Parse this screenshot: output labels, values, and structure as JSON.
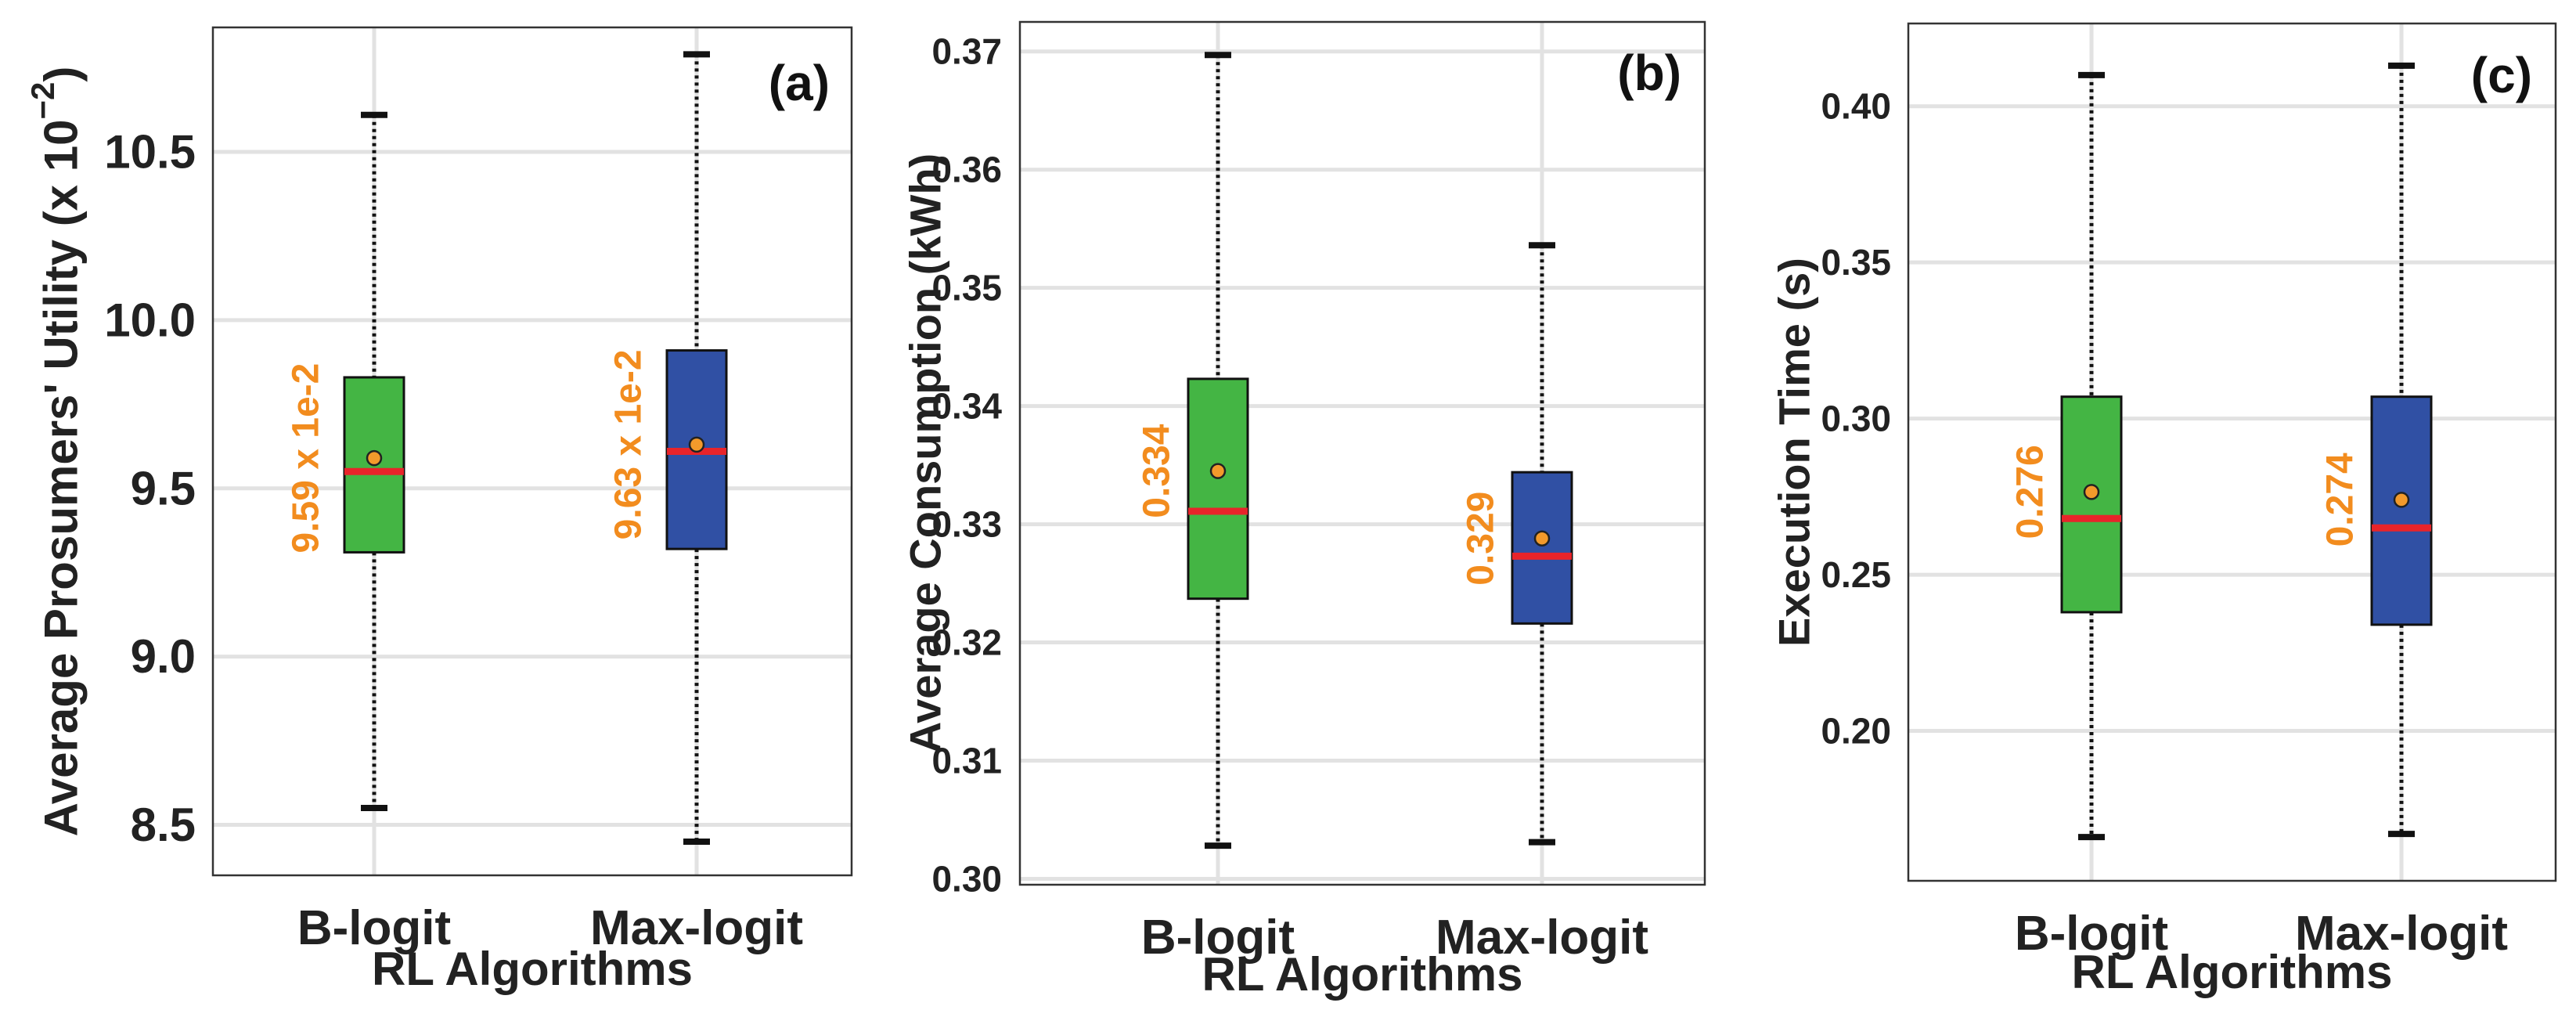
{
  "colors": {
    "b_logit": "#44b544",
    "max_logit": "#3050a4",
    "median": "#e8242a",
    "mean_dot": "#f39a2b",
    "label": "#f28c1e",
    "grid": "#e2e2e2",
    "axis": "#333333"
  },
  "chart_data": [
    {
      "type": "box",
      "panel_label": "(a)",
      "title": "",
      "xlabel": "RL Algorithms",
      "ylabel": "Average Prosumers' Utility (x 10",
      "ylabel_exponent": "−2",
      "ylabel_close": ")",
      "ylim": [
        8.35,
        10.87
      ],
      "yticks": [
        8.5,
        9.0,
        9.5,
        10.0,
        10.5
      ],
      "ytick_labels": [
        "8.5",
        "9.0",
        "9.5",
        "10.0",
        "10.5"
      ],
      "categories": [
        "B-logit",
        "Max-logit"
      ],
      "series": [
        {
          "name": "B-logit",
          "whisker_low": 8.55,
          "q1": 9.31,
          "median": 9.55,
          "q3": 9.83,
          "whisker_high": 10.61,
          "mean": 9.59,
          "label": "9.59 x 1e-2"
        },
        {
          "name": "Max-logit",
          "whisker_low": 8.45,
          "q1": 9.32,
          "median": 9.61,
          "q3": 9.91,
          "whisker_high": 10.79,
          "mean": 9.63,
          "label": "9.63 x 1e-2"
        }
      ]
    },
    {
      "type": "box",
      "panel_label": "(b)",
      "title": "",
      "xlabel": "RL Algorithms",
      "ylabel": "Average Consumption (kWh)",
      "ylim": [
        0.2995,
        0.3725
      ],
      "yticks": [
        0.3,
        0.31,
        0.32,
        0.33,
        0.34,
        0.35,
        0.36,
        0.37
      ],
      "ytick_labels": [
        "0.30",
        "0.31",
        "0.32",
        "0.33",
        "0.34",
        "0.35",
        "0.36",
        "0.37"
      ],
      "categories": [
        "B-logit",
        "Max-logit"
      ],
      "series": [
        {
          "name": "B-logit",
          "whisker_low": 0.3028,
          "q1": 0.3237,
          "median": 0.3311,
          "q3": 0.3423,
          "whisker_high": 0.3697,
          "mean": 0.3345,
          "label": "0.334"
        },
        {
          "name": "Max-logit",
          "whisker_low": 0.3031,
          "q1": 0.3216,
          "median": 0.3273,
          "q3": 0.3344,
          "whisker_high": 0.3536,
          "mean": 0.3288,
          "label": "0.329"
        }
      ]
    },
    {
      "type": "box",
      "panel_label": "(c)",
      "title": "",
      "xlabel": "RL Algorithms",
      "ylabel": "Execution Time (s)",
      "ylim": [
        0.152,
        0.4265
      ],
      "yticks": [
        0.2,
        0.25,
        0.3,
        0.35,
        0.4
      ],
      "ytick_labels": [
        "0.20",
        "0.25",
        "0.30",
        "0.35",
        "0.40"
      ],
      "categories": [
        "B-logit",
        "Max-logit"
      ],
      "series": [
        {
          "name": "B-logit",
          "whisker_low": 0.166,
          "q1": 0.238,
          "median": 0.268,
          "q3": 0.307,
          "whisker_high": 0.41,
          "mean": 0.2765,
          "label": "0.276"
        },
        {
          "name": "Max-logit",
          "whisker_low": 0.167,
          "q1": 0.234,
          "median": 0.265,
          "q3": 0.307,
          "whisker_high": 0.413,
          "mean": 0.274,
          "label": "0.274"
        }
      ]
    }
  ]
}
